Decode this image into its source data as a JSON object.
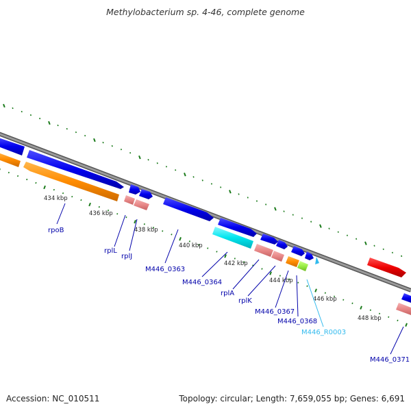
{
  "title": "Methylobacterium sp. 4-46, complete genome",
  "footer": {
    "accession": "Accession: NC_010511",
    "summary": "Topology: circular; Length: 7,659,055 bp; Genes: 6,691"
  },
  "colors": {
    "backbone": "#808080",
    "tick": "#1a7a1a",
    "cds": "#0000ee",
    "cds_alt": "#ff8c00",
    "trna": "#e88888",
    "rrna": "#00e5ee",
    "other": "#99ee44",
    "rna_arrow": "#33bbee",
    "red": "#ee0000"
  },
  "scale_labels": [
    "434 kbp",
    "436 kbp",
    "438 kbp",
    "440 kbp",
    "442 kbp",
    "444 kbp",
    "446 kbp",
    "448 kbp"
  ],
  "gene_labels": [
    "rpoB",
    "rplL",
    "rplJ",
    "M446_0363",
    "M446_0364",
    "rplA",
    "rplK",
    "M446_0367",
    "M446_0368",
    "M446_R0003",
    "M446_0371"
  ]
}
